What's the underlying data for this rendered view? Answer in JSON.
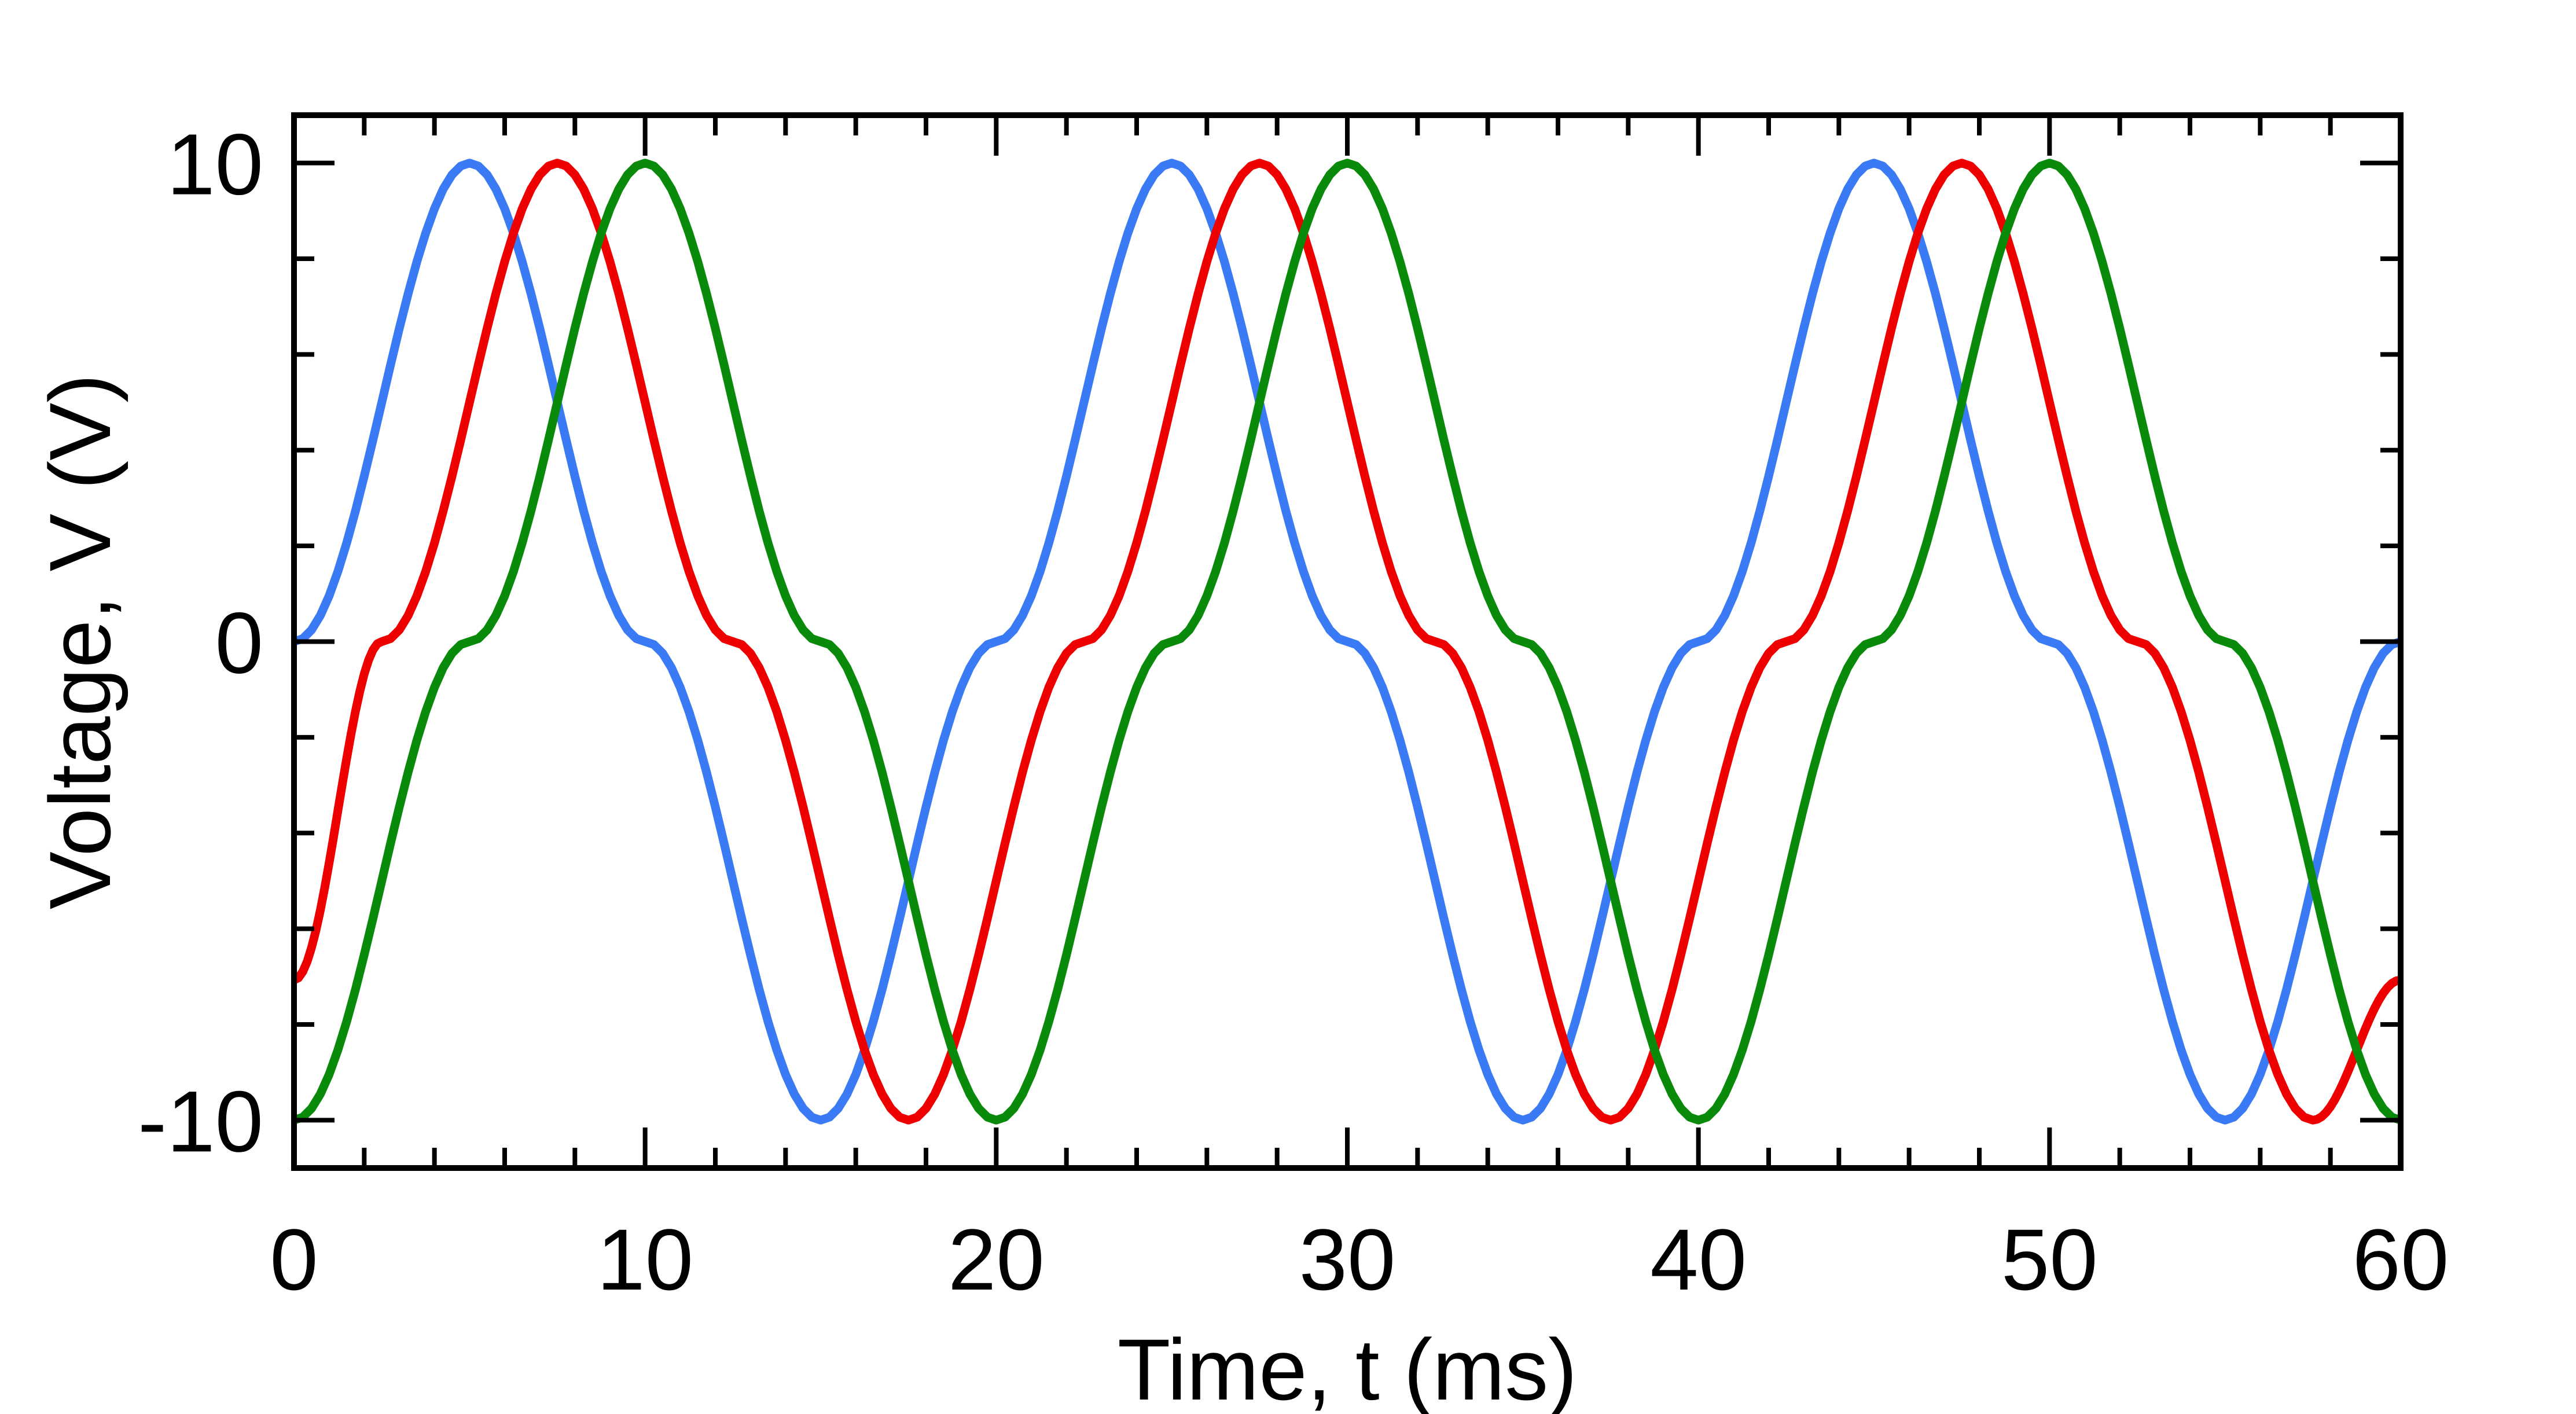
{
  "chart_data": {
    "type": "line",
    "title": "",
    "xlabel": "Time, t (ms)",
    "ylabel": "Voltage, V (V)",
    "xlim": [
      0,
      60
    ],
    "ylim": [
      -11,
      11
    ],
    "xticks": [
      0,
      10,
      20,
      30,
      40,
      50,
      60
    ],
    "xtick_labels": [
      "0",
      "10",
      "20",
      "30",
      "40",
      "50",
      "60"
    ],
    "yticks": [
      -10,
      0,
      10
    ],
    "ytick_labels": [
      "-10",
      "0",
      "10"
    ],
    "x_minor_step": 2,
    "y_minor_step": 2,
    "grid": false,
    "legend": "none",
    "series": [
      {
        "color": "#3a7af5",
        "x": [
          0,
          5,
          10,
          15,
          20,
          25,
          30,
          35,
          40,
          45,
          50,
          55,
          60
        ],
        "values": [
          0,
          10,
          0,
          -10,
          0,
          10,
          0,
          -10,
          0,
          10,
          0,
          -10,
          0
        ]
      },
      {
        "color": "#ee0000",
        "x": [
          0,
          2.5,
          7.5,
          12.5,
          17.5,
          22.5,
          27.5,
          32.5,
          37.5,
          42.5,
          47.5,
          52.5,
          57.5,
          60
        ],
        "values": [
          -7.07,
          0,
          10,
          0,
          -10,
          0,
          10,
          0,
          -10,
          0,
          10,
          0,
          -10,
          -7.07
        ]
      },
      {
        "color": "#0a8a0a",
        "x": [
          0,
          5,
          10,
          15,
          20,
          25,
          30,
          35,
          40,
          45,
          50,
          55,
          60
        ],
        "values": [
          -10,
          0,
          10,
          0,
          -10,
          0,
          10,
          0,
          -10,
          0,
          10,
          0,
          -10
        ]
      }
    ],
    "period_ms": 20,
    "amplitude_v": 10
  }
}
